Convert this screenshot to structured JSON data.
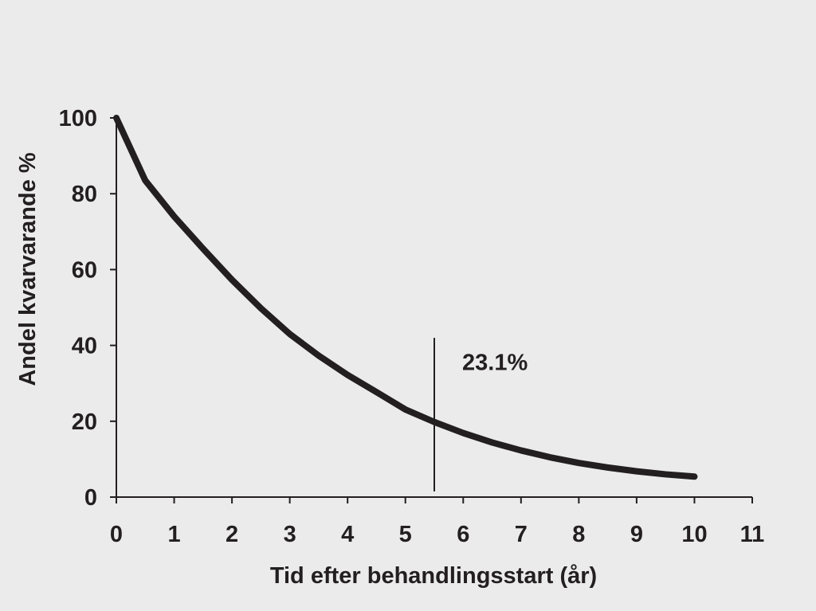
{
  "chart_data": {
    "type": "line",
    "xlabel": "Tid efter behandlingsstart (år)",
    "ylabel": "Andel kvarvarande %",
    "xlim": [
      0,
      11
    ],
    "ylim": [
      0,
      100
    ],
    "x_ticks": [
      0,
      1,
      2,
      3,
      4,
      5,
      6,
      7,
      8,
      9,
      10,
      11
    ],
    "y_ticks": [
      0,
      20,
      40,
      60,
      80,
      100
    ],
    "grid": false,
    "legend": "none",
    "series": [
      {
        "x": [
          0,
          0.5,
          1,
          1.5,
          2,
          2.5,
          3,
          3.5,
          4,
          4.5,
          5,
          5.5,
          6,
          6.5,
          7,
          7.5,
          8,
          8.5,
          9,
          9.5,
          10
        ],
        "values": [
          100,
          83.5,
          74,
          65.5,
          57.3,
          49.8,
          43,
          37.3,
          32.2,
          27.7,
          23.1,
          19.8,
          16.9,
          14.4,
          12.3,
          10.5,
          9.0,
          7.8,
          6.8,
          6.0,
          5.4
        ]
      }
    ],
    "reference_line": {
      "x": 5.5,
      "y_range": [
        1.5,
        42
      ]
    },
    "annotation": {
      "text": "23.1%",
      "x": 6.55,
      "y": 33.5
    }
  },
  "colors": {
    "line": "#231f20",
    "background": "#ebebeb"
  }
}
